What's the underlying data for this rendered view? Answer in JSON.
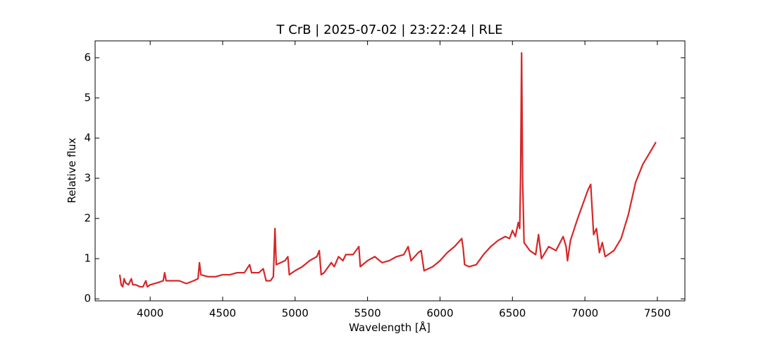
{
  "chart_data": {
    "type": "line",
    "title": "T CrB | 2025-07-02 | 23:22:24 | RLE",
    "x_label": "Wavelength [Å]",
    "y_label": "Relative flux",
    "xlim": [
      3620,
      7690
    ],
    "ylim": [
      -0.05,
      6.42
    ],
    "xticks": [
      4000,
      4500,
      5000,
      5500,
      6000,
      6500,
      7000,
      7500
    ],
    "yticks": [
      0,
      1,
      2,
      3,
      4,
      5,
      6
    ],
    "grid": false,
    "series": [
      {
        "color": "#d62728",
        "x": [
          3790,
          3800,
          3810,
          3820,
          3830,
          3850,
          3870,
          3880,
          3900,
          3930,
          3950,
          3970,
          3980,
          4000,
          4050,
          4090,
          4100,
          4110,
          4150,
          4200,
          4250,
          4300,
          4330,
          4340,
          4350,
          4400,
          4450,
          4500,
          4550,
          4600,
          4650,
          4686,
          4700,
          4750,
          4780,
          4800,
          4830,
          4850,
          4861,
          4870,
          4900,
          4930,
          4950,
          4960,
          5000,
          5050,
          5100,
          5150,
          5167,
          5180,
          5200,
          5250,
          5270,
          5300,
          5330,
          5350,
          5400,
          5440,
          5450,
          5500,
          5550,
          5600,
          5650,
          5700,
          5750,
          5780,
          5800,
          5850,
          5870,
          5890,
          5950,
          6000,
          6050,
          6100,
          6150,
          6160,
          6170,
          6200,
          6250,
          6300,
          6350,
          6400,
          6450,
          6480,
          6500,
          6520,
          6540,
          6550,
          6556,
          6563,
          6570,
          6580,
          6620,
          6660,
          6680,
          6700,
          6750,
          6800,
          6850,
          6870,
          6880,
          6900,
          6950,
          7000,
          7020,
          7040,
          7060,
          7080,
          7100,
          7120,
          7140,
          7200,
          7250,
          7300,
          7350,
          7400,
          7450,
          7490
        ],
        "values": [
          0.6,
          0.35,
          0.3,
          0.5,
          0.4,
          0.35,
          0.5,
          0.35,
          0.35,
          0.3,
          0.3,
          0.45,
          0.3,
          0.35,
          0.4,
          0.45,
          0.65,
          0.45,
          0.45,
          0.45,
          0.38,
          0.45,
          0.5,
          0.9,
          0.6,
          0.55,
          0.55,
          0.6,
          0.6,
          0.65,
          0.65,
          0.85,
          0.65,
          0.65,
          0.75,
          0.45,
          0.45,
          0.55,
          1.75,
          0.85,
          0.9,
          0.95,
          1.05,
          0.6,
          0.7,
          0.8,
          0.95,
          1.05,
          1.2,
          0.6,
          0.65,
          0.9,
          0.8,
          1.05,
          0.95,
          1.1,
          1.1,
          1.3,
          0.8,
          0.95,
          1.05,
          0.9,
          0.95,
          1.05,
          1.1,
          1.3,
          0.95,
          1.15,
          1.2,
          0.7,
          0.8,
          0.95,
          1.15,
          1.3,
          1.5,
          1.25,
          0.85,
          0.8,
          0.85,
          1.1,
          1.3,
          1.45,
          1.55,
          1.5,
          1.7,
          1.55,
          1.9,
          1.75,
          3.0,
          6.12,
          3.0,
          1.4,
          1.2,
          1.1,
          1.6,
          1.0,
          1.3,
          1.2,
          1.55,
          1.3,
          0.95,
          1.45,
          2.0,
          2.5,
          2.7,
          2.85,
          1.6,
          1.75,
          1.15,
          1.4,
          1.05,
          1.2,
          1.5,
          2.1,
          2.9,
          3.35,
          3.65,
          3.9
        ]
      }
    ]
  }
}
